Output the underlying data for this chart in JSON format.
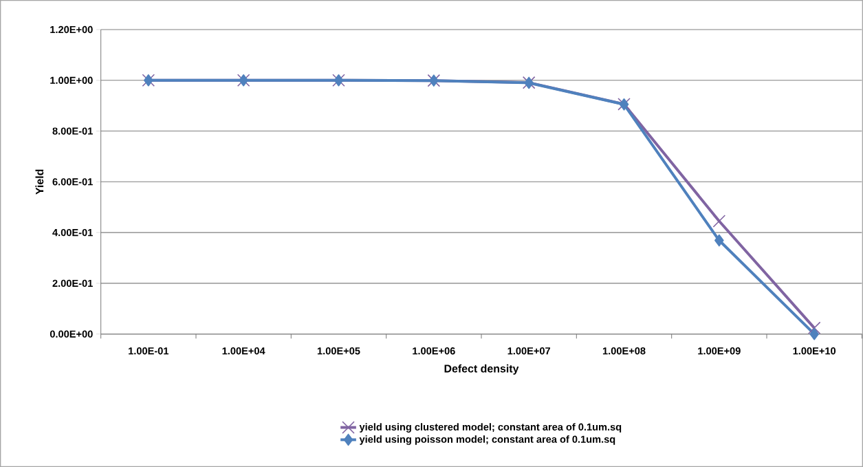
{
  "chart_data": {
    "type": "line",
    "xlabel": "Defect density",
    "ylabel": "Yield",
    "categories": [
      "1.00E-01",
      "1.00E+04",
      "1.00E+05",
      "1.00E+06",
      "1.00E+07",
      "1.00E+08",
      "1.00E+09",
      "1.00E+10"
    ],
    "series": [
      {
        "name": "yield using clustered model; constant area of 0.1um.sq",
        "color": "#8064a2",
        "marker": "cross",
        "values": [
          1.0,
          1.0,
          1.0,
          0.999,
          0.991,
          0.906,
          0.445,
          0.024
        ]
      },
      {
        "name": "yield using poisson model; constant area of 0.1um.sq",
        "color": "#4f81bd",
        "marker": "diamond",
        "values": [
          1.0,
          1.0,
          1.0,
          0.999,
          0.99,
          0.905,
          0.369,
          0.0
        ]
      }
    ],
    "ylim": [
      0,
      1.2
    ],
    "yticks": [
      {
        "value": 0,
        "label": "0.00E+00"
      },
      {
        "value": 0.2,
        "label": "2.00E-01"
      },
      {
        "value": 0.4,
        "label": "4.00E-01"
      },
      {
        "value": 0.6,
        "label": "6.00E-01"
      },
      {
        "value": 0.8,
        "label": "8.00E-01"
      },
      {
        "value": 1.0,
        "label": "1.00E+00"
      },
      {
        "value": 1.2,
        "label": "1.20E+00"
      }
    ],
    "grid": "y",
    "legend": "bottom",
    "line_style": "solid"
  }
}
